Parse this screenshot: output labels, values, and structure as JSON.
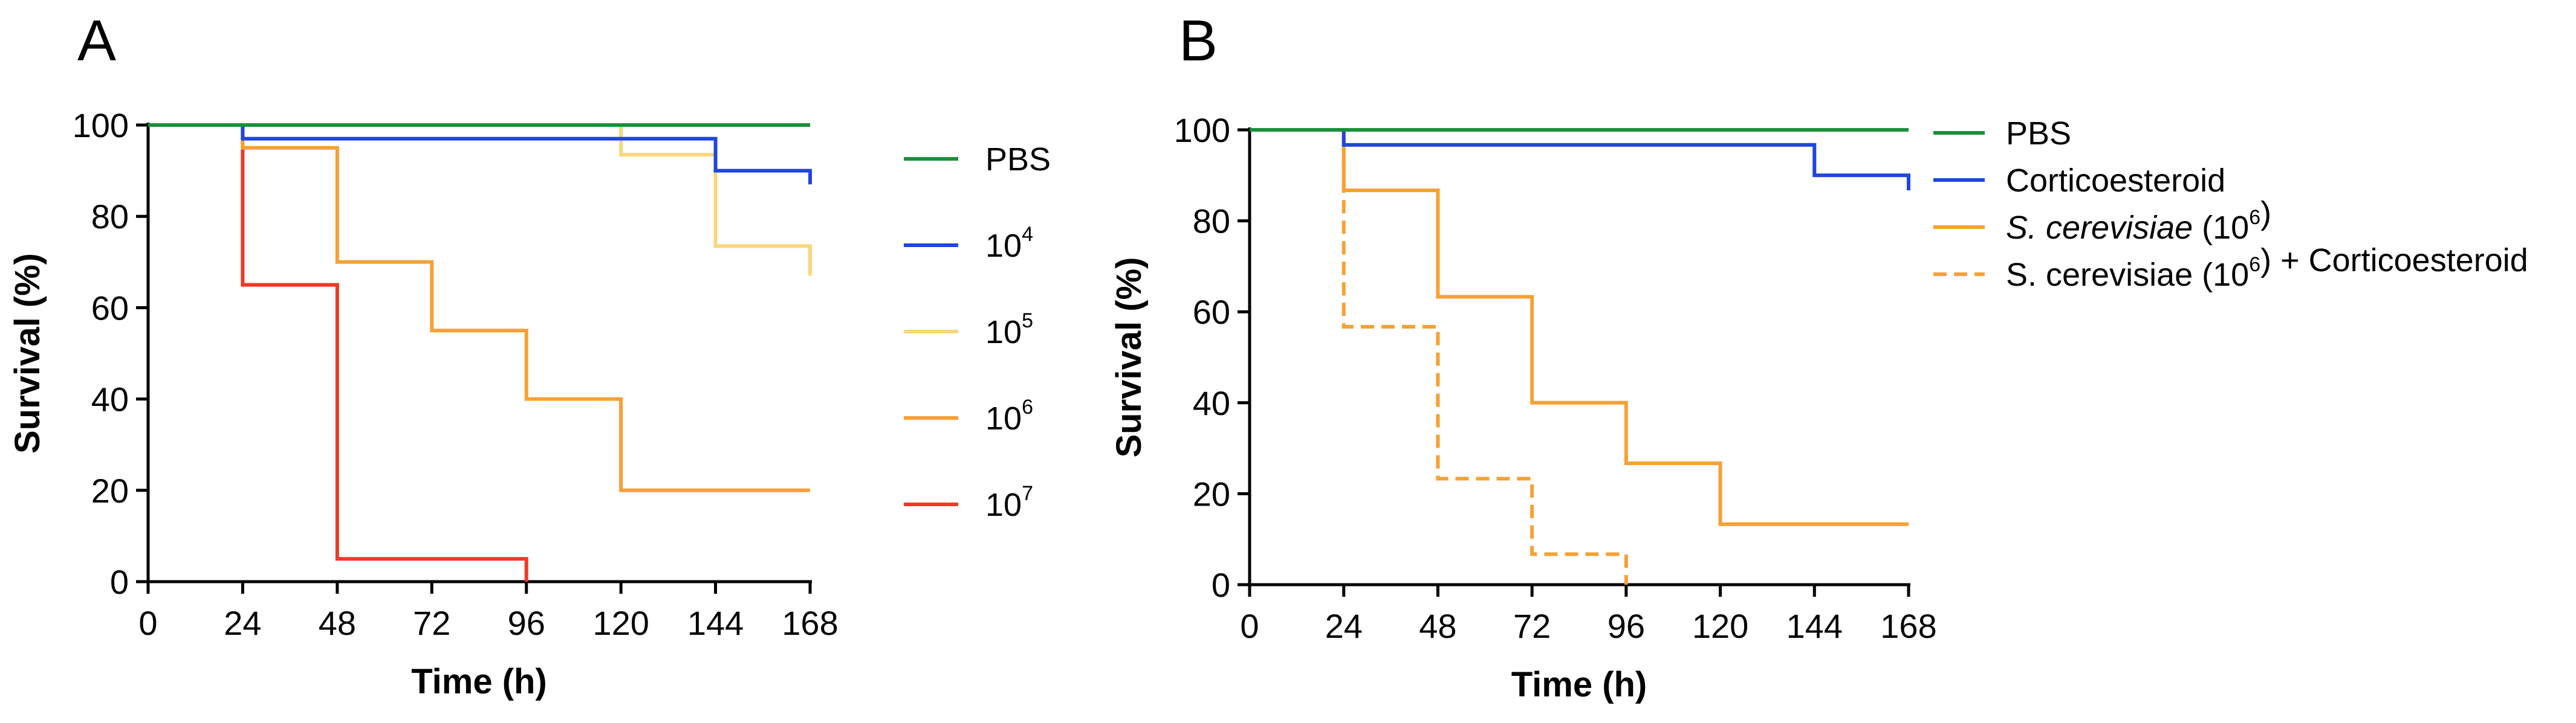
{
  "colors": {
    "green": "#1a8f3a",
    "blue": "#1f45e0",
    "light_yellow": "#f7d77a",
    "orange": "#f7a034",
    "red": "#ee3a24",
    "axis": "#000000"
  },
  "chart_data": [
    {
      "panel": "A",
      "type": "line",
      "subtype": "kaplan-meier-survival",
      "xlabel": "Time (h)",
      "ylabel": "Survival (%)",
      "xlim": [
        0,
        168
      ],
      "ylim": [
        0,
        100
      ],
      "xticks": [
        "0",
        "24",
        "48",
        "72",
        "96",
        "120",
        "144",
        "168"
      ],
      "yticks": [
        "0",
        "20",
        "40",
        "60",
        "80",
        "100"
      ],
      "grid": false,
      "legend_position": "right",
      "series": [
        {
          "name": "PBS",
          "label": "PBS",
          "color": "green",
          "steps": [
            [
              0,
              100
            ],
            [
              168,
              100
            ]
          ]
        },
        {
          "name": "10^4",
          "label": "10",
          "sup": "4",
          "color": "blue",
          "steps": [
            [
              0,
              100
            ],
            [
              24,
              97
            ],
            [
              144,
              90
            ],
            [
              168,
              87
            ]
          ]
        },
        {
          "name": "10^5",
          "label": "10",
          "sup": "5",
          "color": "light_yellow",
          "steps": [
            [
              0,
              100
            ],
            [
              120,
              93.5
            ],
            [
              144,
              73.5
            ],
            [
              168,
              67
            ]
          ]
        },
        {
          "name": "10^6",
          "label": "10",
          "sup": "6",
          "color": "orange",
          "steps": [
            [
              0,
              100
            ],
            [
              24,
              95
            ],
            [
              48,
              70
            ],
            [
              72,
              55
            ],
            [
              96,
              40
            ],
            [
              120,
              20
            ],
            [
              168,
              20
            ]
          ]
        },
        {
          "name": "10^7",
          "label": "10",
          "sup": "7",
          "color": "red",
          "steps": [
            [
              0,
              100
            ],
            [
              24,
              65
            ],
            [
              48,
              5
            ],
            [
              96,
              0
            ]
          ]
        }
      ]
    },
    {
      "panel": "B",
      "type": "line",
      "subtype": "kaplan-meier-survival",
      "xlabel": "Time (h)",
      "ylabel": "Survival (%)",
      "xlim": [
        0,
        168
      ],
      "ylim": [
        0,
        100
      ],
      "xticks": [
        "0",
        "24",
        "48",
        "72",
        "96",
        "120",
        "144",
        "168"
      ],
      "yticks": [
        "0",
        "20",
        "40",
        "60",
        "80",
        "100"
      ],
      "grid": false,
      "legend_position": "right",
      "series": [
        {
          "name": "PBS",
          "color": "green",
          "dashed": false,
          "label_parts": [
            {
              "text": "PBS"
            }
          ],
          "steps": [
            [
              0,
              100
            ],
            [
              168,
              100
            ]
          ]
        },
        {
          "name": "Corticoesteroid",
          "color": "blue",
          "dashed": false,
          "label_parts": [
            {
              "text": "Corticoesteroid"
            }
          ],
          "steps": [
            [
              0,
              100
            ],
            [
              24,
              96.7
            ],
            [
              144,
              90
            ],
            [
              168,
              86.7
            ]
          ]
        },
        {
          "name": "S. cerevisiae (10^6)",
          "color": "orange",
          "dashed": false,
          "label_parts": [
            {
              "text": "S. cerevisiae",
              "italic": true
            },
            {
              "text": " (10"
            },
            {
              "text": "6",
              "sup": true
            },
            {
              "text": ")"
            }
          ],
          "steps": [
            [
              0,
              100
            ],
            [
              24,
              86.7
            ],
            [
              48,
              63.3
            ],
            [
              72,
              40
            ],
            [
              96,
              26.7
            ],
            [
              120,
              13.3
            ],
            [
              168,
              13.3
            ]
          ]
        },
        {
          "name": "S. cerevisiae (10^6) + Corticoesteroid",
          "color": "orange",
          "dashed": true,
          "label_parts": [
            {
              "text": "S. cerevisiae (10"
            },
            {
              "text": "6",
              "sup": true
            },
            {
              "text": ")  + Corticoesteroid"
            }
          ],
          "steps": [
            [
              0,
              100
            ],
            [
              24,
              56.7
            ],
            [
              48,
              23.3
            ],
            [
              72,
              6.7
            ],
            [
              96,
              0
            ]
          ]
        }
      ]
    }
  ]
}
